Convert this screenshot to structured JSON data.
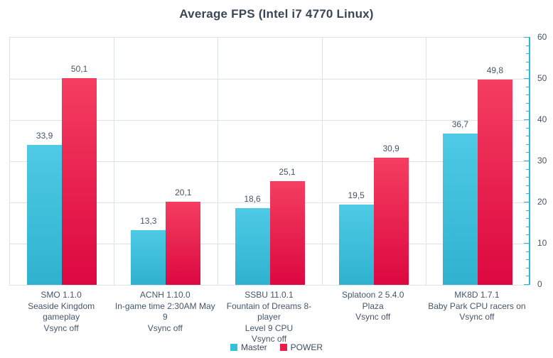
{
  "chart_data": {
    "type": "bar",
    "title": "Average FPS (Intel i7 4770 Linux)",
    "categories": [
      {
        "lines": [
          "SMO 1.1.0",
          "Seaside Kingdom gameplay",
          "Vsync off"
        ]
      },
      {
        "lines": [
          "ACNH 1.10.0",
          "In-game time 2:30AM May 9",
          "Vsync off"
        ]
      },
      {
        "lines": [
          "SSBU 11.0.1",
          "Fountain of Dreams 8-player",
          "Level 9 CPU",
          "Vsync off"
        ]
      },
      {
        "lines": [
          "Splatoon 2 5.4.0",
          "Plaza",
          "Vsync off"
        ]
      },
      {
        "lines": [
          "MK8D 1.7.1",
          "Baby Park CPU racers on",
          "Vsync off"
        ]
      }
    ],
    "series": [
      {
        "name": "Master",
        "values": [
          33.9,
          13.3,
          18.6,
          19.5,
          36.7
        ],
        "value_labels": [
          "33,9",
          "13,3",
          "18,6",
          "19,5",
          "36,7"
        ],
        "color_top": "#4ecae5",
        "color_bottom": "#2fb2cf",
        "legend_color": "#35c0dc"
      },
      {
        "name": "POWER",
        "values": [
          50.1,
          20.1,
          25.1,
          30.9,
          49.8
        ],
        "value_labels": [
          "50,1",
          "20,1",
          "25,1",
          "30,9",
          "49,8"
        ],
        "color_top": "#f43e60",
        "color_bottom": "#dc0840",
        "legend_color": "#ea1c4b"
      }
    ],
    "xlabel": "",
    "ylabel": "",
    "ylim": [
      0,
      60
    ],
    "y_major_step": 10,
    "y_minor_step": 2,
    "y_tick_labels": [
      "0",
      "10",
      "20",
      "30",
      "40",
      "50",
      "60"
    ],
    "y_axis_side": "right",
    "grid": "on",
    "grid_color": "#dbe2e9",
    "axis_color": "#2bb6d8",
    "legend_position": "bottom",
    "decimal_separator": ","
  }
}
